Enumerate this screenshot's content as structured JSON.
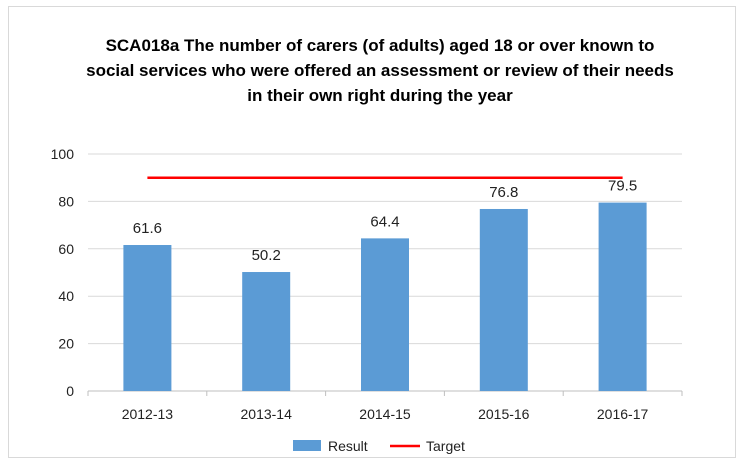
{
  "chart_data": {
    "type": "bar",
    "title": "SCA018a The number of carers (of adults) aged 18 or over known to social services who were offered an assessment or review of their needs in their own right during the year",
    "categories": [
      "2012-13",
      "2013-14",
      "2014-15",
      "2015-16",
      "2016-17"
    ],
    "series": [
      {
        "name": "Result",
        "type": "bar",
        "values": [
          61.6,
          50.2,
          64.4,
          76.8,
          79.5
        ],
        "color": "#5b9bd5"
      },
      {
        "name": "Target",
        "type": "line",
        "values": [
          90,
          90,
          90,
          90,
          90
        ],
        "color": "#ff0000"
      }
    ],
    "data_labels": [
      "61.6",
      "50.2",
      "64.4",
      "76.8",
      "79.5"
    ],
    "ylim": [
      0,
      100
    ],
    "yticks": [
      0,
      20,
      40,
      60,
      80,
      100
    ],
    "grid": true,
    "legend": {
      "position": "bottom",
      "items": [
        "Result",
        "Target"
      ]
    }
  }
}
